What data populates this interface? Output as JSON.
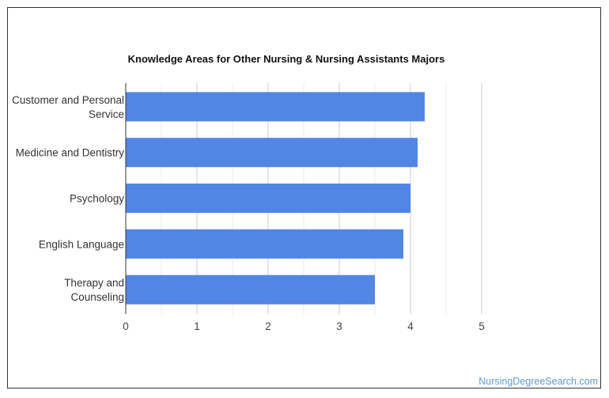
{
  "chart_data": {
    "type": "bar",
    "orientation": "horizontal",
    "title": "Knowledge Areas for Other Nursing & Nursing Assistants Majors",
    "categories": [
      [
        "Customer and Personal",
        "Service"
      ],
      [
        "Medicine and Dentistry"
      ],
      [
        "Psychology"
      ],
      [
        "English Language"
      ],
      [
        "Therapy and",
        "Counseling"
      ]
    ],
    "values": [
      4.2,
      4.1,
      4.0,
      3.9,
      3.5
    ],
    "xlim": [
      0,
      5
    ],
    "xticks": [
      "0",
      "1",
      "2",
      "3",
      "4",
      "5"
    ],
    "grid": true,
    "bar_color": "#5286e4"
  },
  "watermark": "NursingDegreeSearch.com"
}
